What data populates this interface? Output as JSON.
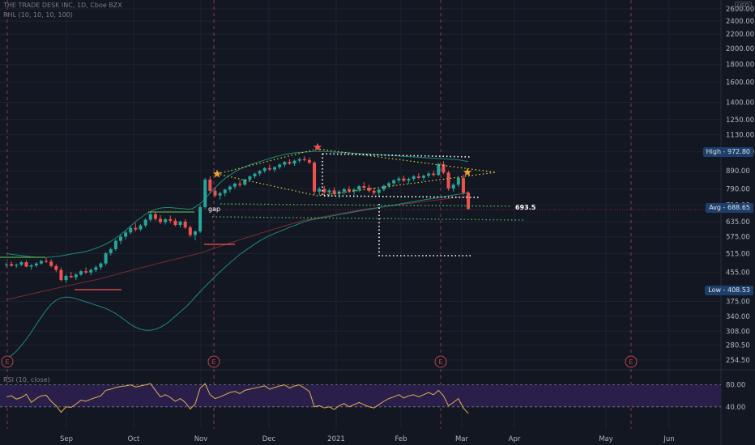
{
  "header": {
    "title": "THE TRADE DESK INC, 1D, Cboe BZX",
    "indicator": "RHL (10, 10, 10, 100)",
    "currency": "USD"
  },
  "rsi": {
    "label": "RSI (10, close)",
    "ticks": [
      "80.00",
      "40.00"
    ]
  },
  "annotations": {
    "gap": "gap",
    "level_693": "693.5",
    "high": "High",
    "high_value": "972.80",
    "avg": "Avg",
    "avg_value": "688.65",
    "low": "Low",
    "low_value": "408.53",
    "earnings_marker": "E"
  },
  "colors": {
    "up": "#26a69a",
    "down": "#ef5350",
    "bollinger": "#1b8a7a",
    "ma": "#7a2a35",
    "dotted_yellow": "#d6d63a",
    "dotted_white": "#ffffff",
    "dotted_green": "#4caf50",
    "star": "#f0a030",
    "rsi_line": "#e0b050",
    "rsi_band": "#2a1f4a"
  },
  "chart_data": {
    "type": "line",
    "title": "THE TRADE DESK INC, 1D, Cboe BZX",
    "x_ticks": [
      "Sep",
      "Oct",
      "Nov",
      "Dec",
      "2021",
      "Feb",
      "Mar",
      "Apr",
      "May",
      "Jun"
    ],
    "y_ticks": [
      "2600.00",
      "2400.00",
      "2200.00",
      "2000.00",
      "1800.00",
      "1600.00",
      "1400.00",
      "1250.00",
      "1130.00",
      "1010.00",
      "890.00",
      "790.00",
      "710.00",
      "635.00",
      "575.00",
      "515.00",
      "455.00",
      "375.00",
      "340.00",
      "308.00",
      "280.50",
      "254.50"
    ],
    "scale": "log",
    "ylim": [
      245,
      2700
    ],
    "series": [
      {
        "values": [
          [
            478,
            485,
            470,
            480
          ],
          [
            480,
            488,
            472,
            475
          ],
          [
            475,
            482,
            468,
            478
          ],
          [
            478,
            490,
            474,
            486
          ],
          [
            486,
            492,
            470,
            472
          ],
          [
            472,
            480,
            462,
            476
          ],
          [
            476,
            486,
            470,
            482
          ],
          [
            482,
            494,
            478,
            490
          ],
          [
            490,
            500,
            484,
            488
          ],
          [
            488,
            496,
            470,
            474
          ],
          [
            474,
            480,
            455,
            462
          ],
          [
            462,
            470,
            428,
            432
          ],
          [
            432,
            448,
            424,
            444
          ],
          [
            444,
            456,
            438,
            440
          ],
          [
            440,
            452,
            432,
            448
          ],
          [
            448,
            462,
            444,
            458
          ],
          [
            458,
            470,
            450,
            454
          ],
          [
            454,
            466,
            446,
            462
          ],
          [
            462,
            476,
            456,
            470
          ],
          [
            470,
            486,
            462,
            482
          ],
          [
            482,
            520,
            476,
            516
          ],
          [
            516,
            536,
            508,
            530
          ],
          [
            530,
            566,
            524,
            560
          ],
          [
            560,
            586,
            548,
            576
          ],
          [
            576,
            600,
            566,
            592
          ],
          [
            592,
            618,
            584,
            610
          ],
          [
            610,
            630,
            596,
            604
          ],
          [
            604,
            626,
            598,
            620
          ],
          [
            620,
            650,
            612,
            644
          ],
          [
            644,
            676,
            636,
            668
          ],
          [
            668,
            680,
            640,
            648
          ],
          [
            648,
            664,
            626,
            634
          ],
          [
            634,
            652,
            624,
            646
          ],
          [
            646,
            662,
            630,
            640
          ],
          [
            640,
            650,
            616,
            622
          ],
          [
            622,
            640,
            612,
            636
          ],
          [
            636,
            646,
            606,
            612
          ],
          [
            612,
            620,
            574,
            582
          ],
          [
            582,
            600,
            562,
            596
          ],
          [
            596,
            710,
            590,
            700
          ],
          [
            700,
            850,
            692,
            840
          ],
          [
            840,
            858,
            770,
            780
          ],
          [
            780,
            800,
            748,
            756
          ],
          [
            756,
            776,
            736,
            768
          ],
          [
            768,
            790,
            752,
            786
          ],
          [
            786,
            810,
            772,
            802
          ],
          [
            802,
            824,
            790,
            818
          ],
          [
            818,
            838,
            800,
            812
          ],
          [
            812,
            846,
            806,
            840
          ],
          [
            840,
            864,
            828,
            858
          ],
          [
            858,
            880,
            846,
            874
          ],
          [
            874,
            896,
            860,
            890
          ],
          [
            890,
            912,
            878,
            906
          ],
          [
            906,
            928,
            890,
            898
          ],
          [
            898,
            918,
            884,
            912
          ],
          [
            912,
            936,
            900,
            928
          ],
          [
            928,
            950,
            912,
            944
          ],
          [
            944,
            962,
            926,
            934
          ],
          [
            934,
            958,
            920,
            952
          ],
          [
            952,
            972,
            938,
            962
          ],
          [
            962,
            980,
            948,
            956
          ],
          [
            956,
            972,
            930,
            940
          ],
          [
            940,
            950,
            760,
            776
          ],
          [
            776,
            800,
            756,
            790
          ],
          [
            790,
            806,
            764,
            772
          ],
          [
            772,
            792,
            752,
            782
          ],
          [
            782,
            798,
            756,
            764
          ],
          [
            764,
            784,
            742,
            776
          ],
          [
            776,
            796,
            760,
            788
          ],
          [
            788,
            804,
            770,
            778
          ],
          [
            778,
            794,
            760,
            786
          ],
          [
            786,
            810,
            774,
            804
          ],
          [
            804,
            826,
            790,
            796
          ],
          [
            796,
            812,
            772,
            780
          ],
          [
            780,
            796,
            758,
            770
          ],
          [
            770,
            790,
            752,
            786
          ],
          [
            786,
            812,
            778,
            806
          ],
          [
            806,
            828,
            794,
            820
          ],
          [
            820,
            842,
            808,
            836
          ],
          [
            836,
            856,
            820,
            846
          ],
          [
            846,
            862,
            826,
            834
          ],
          [
            834,
            852,
            818,
            844
          ],
          [
            844,
            866,
            832,
            858
          ],
          [
            858,
            876,
            842,
            850
          ],
          [
            850,
            868,
            834,
            862
          ],
          [
            862,
            884,
            850,
            874
          ],
          [
            874,
            890,
            858,
            866
          ],
          [
            866,
            940,
            860,
            930
          ],
          [
            930,
            948,
            870,
            880
          ],
          [
            880,
            892,
            780,
            792
          ],
          [
            792,
            820,
            776,
            812
          ],
          [
            812,
            860,
            800,
            850
          ],
          [
            850,
            868,
            760,
            770
          ],
          [
            770,
            778,
            688,
            692
          ]
        ],
        "name": ""
      },
      {
        "values": [
          380,
          382,
          385,
          388,
          391,
          394,
          397,
          400,
          403,
          406,
          409,
          412,
          415,
          418,
          421,
          424,
          427,
          430,
          433,
          436,
          440,
          444,
          448,
          452,
          456,
          460,
          464,
          468,
          472,
          476,
          480,
          484,
          488,
          492,
          496,
          500,
          504,
          508,
          512,
          516,
          522,
          528,
          534,
          540,
          546,
          552,
          558,
          564,
          570,
          576,
          582,
          588,
          594,
          600,
          606,
          612,
          618,
          624,
          630,
          636,
          642,
          646,
          650,
          654,
          658,
          662,
          666,
          670,
          674,
          678,
          682,
          686,
          690,
          693,
          696,
          699,
          702,
          705,
          708,
          711,
          714,
          717,
          720,
          723,
          726,
          729,
          732,
          735,
          738,
          741,
          744,
          747,
          750,
          752
        ],
        "name": ""
      },
      {
        "values": [
          515,
          512,
          510,
          508,
          506,
          504,
          503,
          502,
          502,
          503,
          505,
          507,
          510,
          513,
          516,
          519,
          522,
          527,
          533,
          540,
          548,
          558,
          570,
          584,
          600,
          618,
          636,
          652,
          668,
          680,
          690,
          696,
          698,
          698,
          696,
          694,
          692,
          690,
          700,
          716,
          740,
          768,
          796,
          822,
          846,
          866,
          884,
          900,
          914,
          926,
          936,
          946,
          956,
          966,
          976,
          984,
          992,
          998,
          1002,
          1005,
          1008,
          1010,
          1012,
          1012,
          1012,
          1010,
          1008,
          1006,
          1004,
          1002,
          1000,
          998,
          996,
          994,
          992,
          990,
          988,
          986,
          984,
          982,
          980,
          978,
          976,
          974,
          972,
          970,
          968,
          966,
          964,
          962,
          960,
          958,
          952,
          946
        ],
        "name": ""
      },
      {
        "values": [
          255,
          262,
          270,
          280,
          292,
          306,
          322,
          338,
          354,
          368,
          378,
          384,
          386,
          385,
          382,
          378,
          374,
          370,
          366,
          362,
          358,
          352,
          346,
          338,
          330,
          322,
          316,
          312,
          310,
          310,
          312,
          316,
          322,
          330,
          340,
          350,
          360,
          372,
          386,
          400,
          414,
          428,
          442,
          456,
          470,
          484,
          498,
          512,
          524,
          536,
          548,
          560,
          570,
          580,
          588,
          596,
          604,
          612,
          620,
          628,
          636,
          642,
          646,
          650,
          654,
          658,
          662,
          666,
          670,
          674,
          678,
          682,
          686,
          690,
          694,
          698,
          702,
          706,
          710,
          714,
          718,
          722,
          726,
          730,
          734,
          738,
          742,
          746,
          750,
          754,
          758,
          762,
          766,
          772
        ],
        "name": ""
      }
    ],
    "rsi": {
      "ylim": [
        0,
        100
      ],
      "values": [
        58,
        60,
        54,
        57,
        63,
        48,
        55,
        60,
        61,
        50,
        42,
        30,
        40,
        39,
        45,
        52,
        50,
        54,
        57,
        60,
        70,
        72,
        75,
        77,
        78,
        80,
        76,
        78,
        80,
        82,
        70,
        58,
        62,
        57,
        50,
        55,
        48,
        36,
        45,
        74,
        82,
        62,
        55,
        58,
        62,
        66,
        68,
        64,
        70,
        72,
        74,
        76,
        78,
        72,
        75,
        78,
        80,
        74,
        78,
        80,
        74,
        68,
        40,
        42,
        38,
        40,
        35,
        42,
        46,
        40,
        44,
        48,
        44,
        40,
        38,
        44,
        50,
        55,
        58,
        62,
        56,
        60,
        62,
        58,
        62,
        66,
        62,
        70,
        60,
        42,
        48,
        55,
        38,
        28
      ],
      "ticks": [
        80,
        40
      ]
    },
    "levels": {
      "high": 972.8,
      "avg": 688.65,
      "low": 408.53,
      "marked": 693.5
    }
  }
}
